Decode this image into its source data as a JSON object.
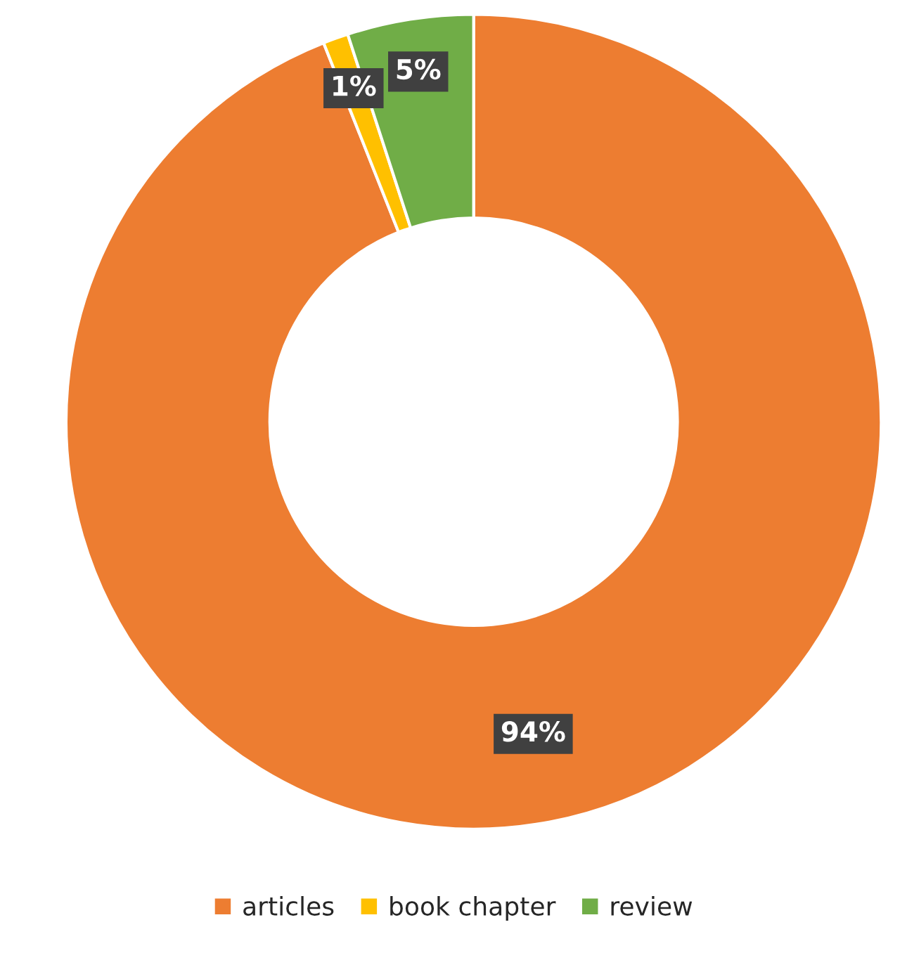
{
  "chart_data": {
    "type": "donut",
    "categories": [
      "articles",
      "book chapter",
      "review"
    ],
    "values": [
      94,
      1,
      5
    ],
    "colors": [
      "#ed7d31",
      "#ffc000",
      "#70ad47"
    ],
    "value_labels": [
      "94%",
      "1%",
      "5%"
    ],
    "legend": "bottom"
  }
}
